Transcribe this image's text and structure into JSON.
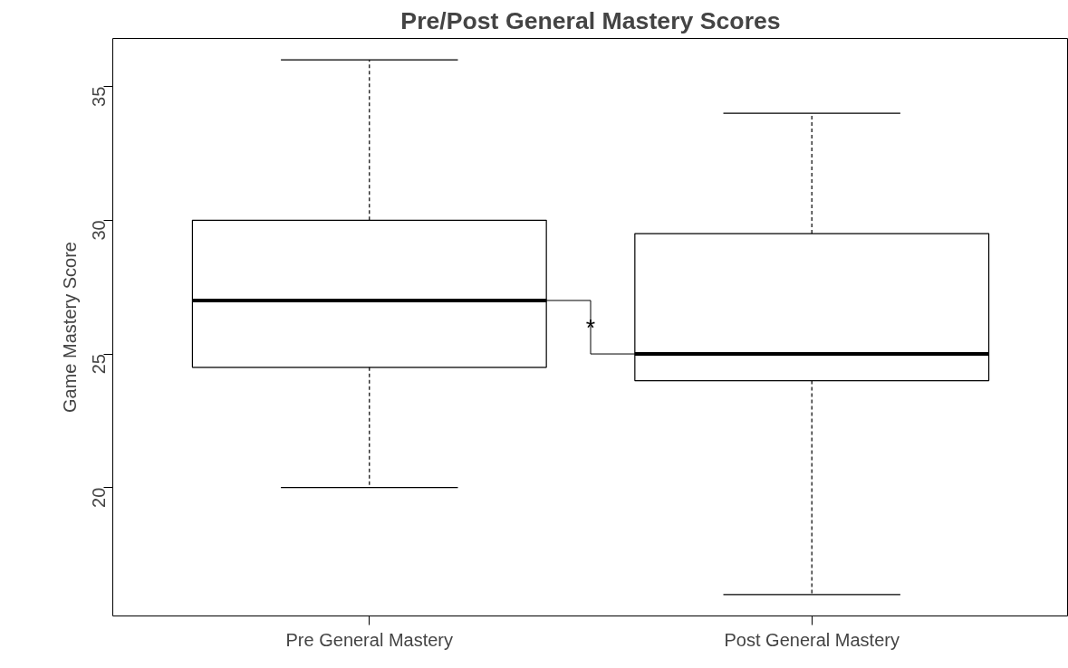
{
  "chart_data": {
    "type": "box",
    "title": "Pre/Post General Mastery Scores",
    "ylabel": "Game Mastery Score",
    "categories": [
      "Pre General Mastery",
      "Post General Mastery"
    ],
    "boxes": [
      {
        "low": 20,
        "q1": 24.5,
        "median": 27,
        "q3": 30,
        "high": 36
      },
      {
        "low": 16,
        "q1": 24,
        "median": 25,
        "q3": 29.5,
        "high": 34
      }
    ],
    "ylim": [
      15.2,
      36.8
    ],
    "yticks": [
      20,
      25,
      30,
      35
    ],
    "grid": false,
    "annotations": [
      "*"
    ]
  }
}
